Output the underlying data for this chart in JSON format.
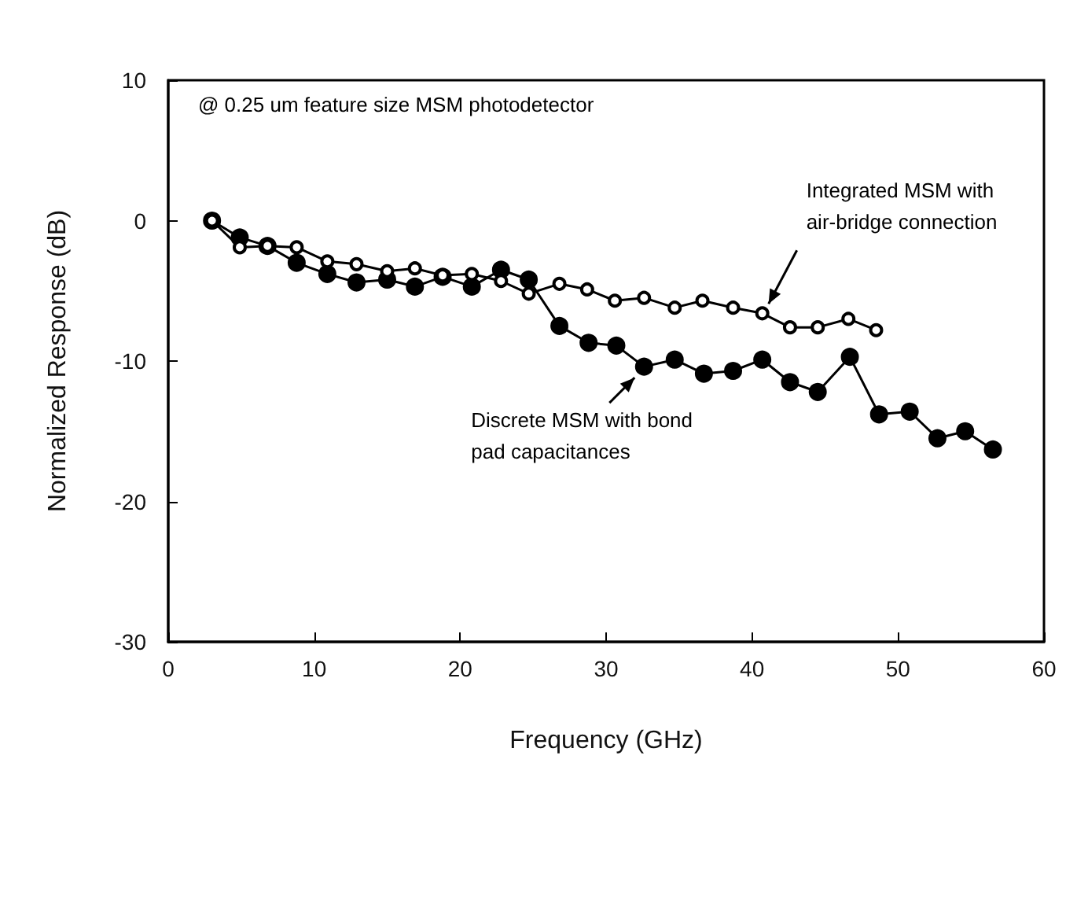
{
  "chart_data": {
    "type": "line",
    "xlabel": "Frequency (GHz)",
    "ylabel": "Normalized Response (dB)",
    "annotations": [
      "@ 0.25 um feature size MSM photodetector",
      {
        "text": "Integrated MSM with\nair-bridge connection",
        "x": 40.7,
        "y": -6.6
      },
      {
        "text": "Discrete MSM with bond\npad capacitances",
        "x": 32.6,
        "y": -10.4
      }
    ],
    "series": [
      {
        "color": "#000000",
        "x": [
          3.0,
          4.9,
          6.8,
          8.8,
          10.9,
          12.9,
          15.0,
          16.9,
          18.8,
          20.8,
          22.8,
          24.7,
          26.8,
          28.7,
          30.6,
          32.6,
          34.7,
          36.6,
          38.7,
          40.7,
          42.6,
          44.5,
          46.6,
          48.5
        ],
        "values": [
          0,
          -1.9,
          -1.8,
          -1.9,
          -2.9,
          -3.1,
          -3.6,
          -3.4,
          -3.9,
          -3.8,
          -4.3,
          -5.2,
          -4.5,
          -4.9,
          -5.7,
          -5.5,
          -6.2,
          -5.7,
          -6.2,
          -6.6,
          -7.6,
          -7.6,
          -7.0,
          -7.8
        ]
      },
      {
        "color": "#000000",
        "x": [
          3.0,
          4.9,
          6.8,
          8.8,
          10.9,
          12.9,
          15.0,
          16.9,
          18.8,
          20.8,
          22.8,
          24.7,
          26.8,
          28.8,
          30.7,
          32.6,
          34.7,
          36.7,
          38.7,
          40.7,
          42.6,
          44.5,
          46.7,
          48.7,
          50.8,
          52.7,
          54.6,
          56.5
        ],
        "values": [
          0,
          -1.2,
          -1.8,
          -3.0,
          -3.8,
          -4.4,
          -4.2,
          -4.7,
          -4.0,
          -4.7,
          -3.5,
          -4.2,
          -7.5,
          -8.7,
          -8.9,
          -10.4,
          -9.9,
          -10.9,
          -10.7,
          -9.9,
          -11.5,
          -12.2,
          -9.7,
          -13.8,
          -13.6,
          -15.5,
          -15.0,
          -16.3
        ]
      }
    ],
    "xlim": [
      0,
      60
    ],
    "xticks": [
      0,
      10,
      20,
      30,
      40,
      50,
      60
    ],
    "ylim": [
      -30,
      10
    ],
    "yticks": [
      -30,
      -20,
      -10,
      0,
      10
    ],
    "marker": "circle",
    "line_style": "solid"
  }
}
